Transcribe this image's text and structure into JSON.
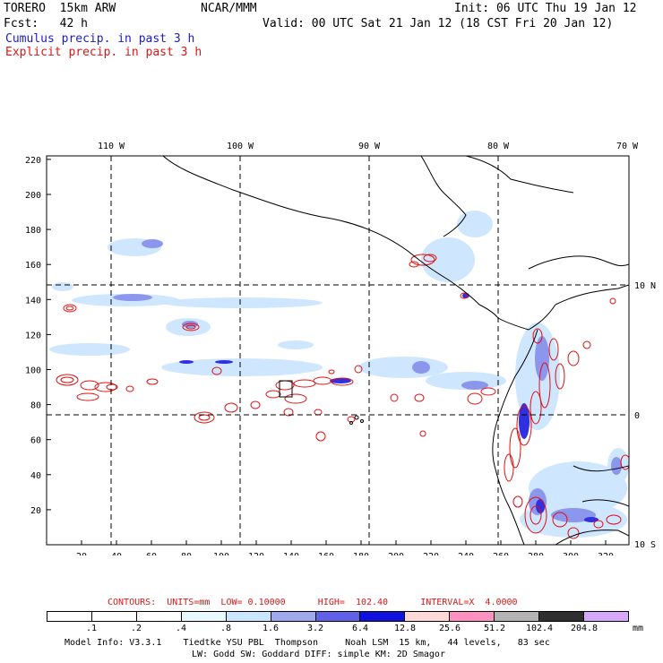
{
  "header": {
    "model": "TORERO  15km ARW",
    "org": "NCAR/MMM",
    "init": "Init: 06 UTC Thu 19 Jan 12",
    "fcst": "Fcst:   42 h",
    "valid": "Valid: 00 UTC Sat 21 Jan 12 (18 CST Fri 20 Jan 12)",
    "line_blue": "Cumulus precip. in past 3 h",
    "line_red": "Explicit precip. in past 3 h"
  },
  "map": {
    "longitude_labels": [
      "110 W",
      "100 W",
      "90 W",
      "80 W",
      "70 W"
    ],
    "latitude_labels": [
      "10 N",
      "0",
      "10 S"
    ],
    "x_ticks": [
      20,
      40,
      60,
      80,
      100,
      120,
      140,
      160,
      180,
      200,
      220,
      240,
      260,
      280,
      300,
      320
    ],
    "y_ticks": [
      20,
      40,
      60,
      80,
      100,
      120,
      140,
      160,
      180,
      200,
      220
    ],
    "line_color": "#000000",
    "cumulus_color": "#4040e0",
    "explicit_color": "#e01010"
  },
  "contours_line": "CONTOURS:  UNITS=mm  LOW= 0.10000      HIGH=  102.40      INTERVAL=X  4.0000",
  "colorbar": {
    "colors": [
      "#ffffff",
      "#ffffff",
      "#ffffff",
      "#e8f8ff",
      "#c8e6ff",
      "#a0a8f0",
      "#6060e8",
      "#1010e0",
      "#ffd8d8",
      "#ff90c0",
      "#b4b4b4",
      "#303030",
      "#d8a8ff"
    ],
    "labels": [
      ".1",
      ".2",
      ".4",
      ".8",
      "1.6",
      "3.2",
      "6.4",
      "12.8",
      "25.6",
      "51.2",
      "102.4",
      "204.8"
    ],
    "units": "mm"
  },
  "footer": {
    "line1": "Model Info: V3.3.1    Tiedtke YSU PBL  Thompson     Noah LSM  15 km,   44 levels,   83 sec",
    "line2": "LW: Godd SW: Goddard DIFF: simple KM: 2D Smagor"
  }
}
